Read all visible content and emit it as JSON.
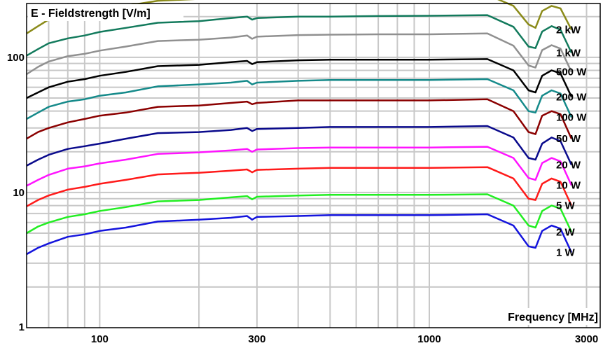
{
  "chart_data": {
    "type": "line",
    "title": "E - Fieldstrength [V/m]",
    "xlabel": "Frequency [MHz]",
    "ylabel": "",
    "x_scale": "log",
    "y_scale": "log",
    "xlim": [
      60,
      3300
    ],
    "ylim": [
      1,
      250
    ],
    "grid": true,
    "x_ticks": [
      100,
      300,
      1000,
      3000
    ],
    "x_tick_labels": [
      "100",
      "300",
      "1000",
      "3000"
    ],
    "y_ticks": [
      1,
      10,
      100
    ],
    "y_tick_labels": [
      "1",
      "10",
      "100"
    ],
    "x": [
      60,
      65,
      70,
      80,
      90,
      100,
      120,
      150,
      200,
      250,
      280,
      290,
      300,
      400,
      500,
      700,
      1000,
      1500,
      1800,
      2000,
      2100,
      2200,
      2350,
      2500,
      2700
    ],
    "series": [
      {
        "name": "2 kW",
        "color": "#8b8b1a",
        "values": [
          150,
          170,
          190,
          206,
          213,
          225,
          240,
          262,
          270,
          280,
          285,
          270,
          280,
          285,
          285,
          287,
          287,
          290,
          240,
          175,
          165,
          220,
          240,
          230,
          160
        ]
      },
      {
        "name": "1 kW",
        "color": "#127a5c",
        "values": [
          103,
          115,
          127,
          138,
          145,
          154,
          165,
          180,
          185,
          195,
          200,
          190,
          195,
          200,
          200,
          202,
          203,
          205,
          168,
          120,
          117,
          155,
          170,
          160,
          108
        ]
      },
      {
        "name": "500 W",
        "color": "#909090",
        "values": [
          75,
          85,
          93,
          102,
          106,
          112,
          120,
          132,
          135,
          140,
          145,
          137,
          142,
          146,
          147,
          148,
          148,
          150,
          122,
          87,
          84,
          113,
          123,
          116,
          78
        ]
      },
      {
        "name": "200 W",
        "color": "#000000",
        "values": [
          50,
          55,
          60,
          66,
          69,
          73,
          78,
          86,
          88,
          92,
          94,
          89,
          92,
          95,
          96,
          96,
          96,
          97,
          80,
          57,
          55,
          73,
          80,
          76,
          51
        ]
      },
      {
        "name": "100 W",
        "color": "#158a8a",
        "values": [
          35,
          39,
          43,
          47,
          49,
          52,
          55,
          61,
          63,
          65,
          67,
          63,
          65,
          67,
          68,
          68,
          68,
          69,
          57,
          40,
          39,
          52,
          57,
          54,
          36
        ]
      },
      {
        "name": "50 W",
        "color": "#8b0000",
        "values": [
          25,
          28,
          30,
          33,
          35,
          37,
          39,
          43,
          44,
          46,
          47,
          45,
          46,
          48,
          48,
          48,
          48,
          49,
          40,
          28,
          27,
          37,
          40,
          38,
          25
        ]
      },
      {
        "name": "20 W",
        "color": "#0a0a8c",
        "values": [
          15.8,
          17.5,
          19,
          21,
          22,
          23,
          25,
          27.5,
          28,
          29,
          30,
          28.5,
          29.5,
          30,
          30.5,
          30.5,
          30.5,
          31,
          25.5,
          18,
          17.5,
          23,
          25.5,
          24,
          16
        ]
      },
      {
        "name": "10 W",
        "color": "#ff14ff",
        "values": [
          11.2,
          12.4,
          13.5,
          15,
          15.6,
          16.4,
          17.5,
          19.3,
          19.8,
          20.5,
          21,
          20,
          20.8,
          21.3,
          21.5,
          21.5,
          21.5,
          21.8,
          18,
          12.8,
          12.4,
          16.5,
          18,
          17,
          11.3
        ]
      },
      {
        "name": "5 W",
        "color": "#ff1a1a",
        "values": [
          7.9,
          8.8,
          9.5,
          10.5,
          11,
          11.6,
          12.4,
          13.6,
          14,
          14.5,
          14.8,
          14.1,
          14.7,
          15,
          15.2,
          15.2,
          15.2,
          15.4,
          12.7,
          9,
          8.8,
          11.6,
          12.7,
          12,
          8
        ]
      },
      {
        "name": "2 W",
        "color": "#22ee22",
        "values": [
          5,
          5.6,
          6,
          6.6,
          6.9,
          7.3,
          7.8,
          8.6,
          8.8,
          9.2,
          9.4,
          8.9,
          9.3,
          9.5,
          9.6,
          9.6,
          9.6,
          9.7,
          8,
          5.7,
          5.5,
          7.3,
          8,
          7.6,
          5.1
        ]
      },
      {
        "name": "1 W",
        "color": "#1414dd",
        "values": [
          3.5,
          3.9,
          4.2,
          4.7,
          4.9,
          5.2,
          5.5,
          6.1,
          6.3,
          6.5,
          6.7,
          6.3,
          6.6,
          6.7,
          6.8,
          6.8,
          6.8,
          6.9,
          5.7,
          4,
          3.9,
          5.2,
          5.7,
          5.4,
          3.6
        ]
      }
    ]
  }
}
